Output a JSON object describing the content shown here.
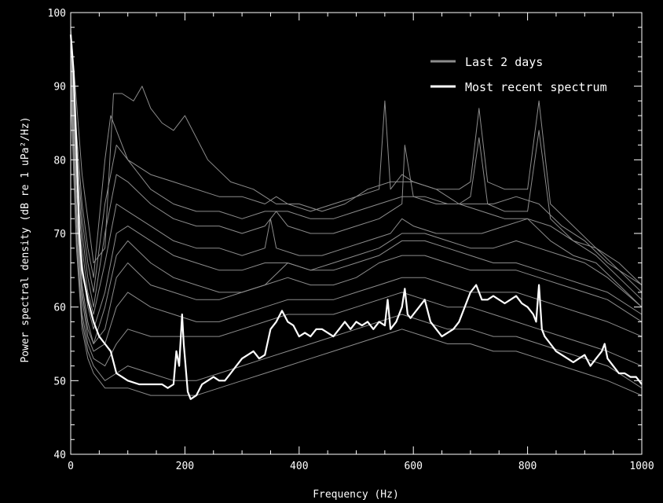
{
  "chart_data": {
    "type": "line",
    "xlabel": "Frequency (Hz)",
    "ylabel": "Power spectral density (dB re 1 uPa²/Hz)",
    "xlim": [
      0,
      1000
    ],
    "ylim": [
      40,
      100
    ],
    "xticks": [
      0,
      200,
      400,
      600,
      800,
      1000
    ],
    "yticks": [
      40,
      50,
      60,
      70,
      80,
      90,
      100
    ],
    "grid": false,
    "legend_position": "top-right",
    "colors": {
      "background": "#000000",
      "axes": "#ffffff",
      "history": "#8c8c8c",
      "recent": "#ffffff"
    },
    "legend": [
      {
        "label": "Last 2 days",
        "color": "#8c8c8c"
      },
      {
        "label": "Most recent spectrum",
        "color": "#ffffff"
      }
    ],
    "series": [
      {
        "name": "Most recent spectrum",
        "color": "#ffffff",
        "x": [
          0,
          5,
          10,
          15,
          20,
          25,
          30,
          40,
          50,
          60,
          70,
          80,
          90,
          100,
          120,
          140,
          160,
          170,
          180,
          185,
          190,
          195,
          198,
          205,
          210,
          220,
          230,
          240,
          250,
          260,
          270,
          280,
          290,
          300,
          310,
          320,
          330,
          340,
          350,
          360,
          370,
          380,
          390,
          400,
          410,
          420,
          430,
          440,
          450,
          460,
          470,
          480,
          490,
          500,
          510,
          520,
          530,
          540,
          550,
          555,
          560,
          570,
          580,
          585,
          590,
          595,
          600,
          610,
          620,
          630,
          640,
          650,
          660,
          670,
          680,
          690,
          700,
          710,
          715,
          720,
          730,
          740,
          750,
          760,
          770,
          780,
          790,
          800,
          810,
          815,
          820,
          825,
          830,
          840,
          850,
          860,
          870,
          880,
          890,
          900,
          910,
          920,
          930,
          935,
          940,
          950,
          960,
          970,
          980,
          990,
          1000
        ],
        "y": [
          97,
          92,
          82,
          70,
          65,
          63,
          61,
          58,
          56,
          55,
          54,
          51,
          50.5,
          50,
          49.5,
          49.5,
          49.5,
          49,
          49.5,
          54,
          52,
          59,
          55,
          48.5,
          47.5,
          48,
          49.5,
          50,
          50.5,
          50,
          50,
          51,
          52,
          53,
          53.5,
          54,
          53,
          53.5,
          57,
          58,
          59.5,
          58,
          57.5,
          56,
          56.5,
          56,
          57,
          57,
          56.5,
          56,
          57,
          58,
          57,
          58,
          57.5,
          58,
          57,
          58,
          57.5,
          61,
          57,
          58,
          60,
          62.5,
          59,
          58.5,
          59,
          60,
          61,
          58,
          57,
          56,
          56.5,
          57,
          58,
          60,
          62,
          63,
          62,
          61,
          61,
          61.5,
          61,
          60.5,
          61,
          61.5,
          60.5,
          60,
          59,
          58,
          63,
          57,
          56,
          55,
          54,
          53.5,
          53,
          52.5,
          53,
          53.5,
          52,
          53,
          54,
          55,
          53,
          52,
          51,
          51,
          50.5,
          50.5,
          49.5
        ]
      },
      {
        "name": "Last 2 days",
        "color": "#8c8c8c",
        "x": [
          0,
          10,
          20,
          30,
          40,
          60,
          75,
          90,
          110,
          125,
          140,
          160,
          180,
          200,
          240,
          280,
          320,
          360,
          400,
          440,
          480,
          520,
          560,
          600,
          640,
          680,
          720,
          760,
          800,
          840,
          880,
          920,
          960,
          1000
        ],
        "y": [
          98,
          88,
          78,
          72,
          66,
          68,
          89,
          89,
          88,
          90,
          87,
          85,
          84,
          86,
          80,
          77,
          76,
          74,
          74,
          73,
          74,
          76,
          77,
          77,
          76,
          74,
          73,
          72,
          72,
          71,
          69,
          68,
          66,
          63
        ]
      },
      {
        "name": "Last 2 days",
        "color": "#8c8c8c",
        "x": [
          0,
          10,
          20,
          30,
          40,
          60,
          70,
          80,
          100,
          140,
          180,
          220,
          260,
          300,
          340,
          360,
          380,
          420,
          460,
          500,
          540,
          550,
          560,
          580,
          600,
          640,
          680,
          700,
          715,
          730,
          760,
          800,
          820,
          840,
          880,
          920,
          960,
          1000
        ],
        "y": [
          97,
          84,
          74,
          68,
          64,
          80,
          86,
          84,
          80,
          78,
          77,
          76,
          75,
          75,
          74,
          75,
          74,
          73,
          74,
          75,
          76,
          88,
          76,
          78,
          77,
          76,
          76,
          77,
          87,
          77,
          76,
          76,
          88,
          74,
          71,
          68,
          65,
          62
        ]
      },
      {
        "name": "Last 2 days",
        "color": "#8c8c8c",
        "x": [
          0,
          10,
          20,
          30,
          40,
          60,
          80,
          100,
          140,
          180,
          220,
          260,
          300,
          340,
          360,
          380,
          420,
          460,
          500,
          540,
          560,
          580,
          585,
          600,
          640,
          680,
          700,
          715,
          730,
          760,
          800,
          820,
          840,
          880,
          920,
          960,
          1000
        ],
        "y": [
          95,
          80,
          70,
          64,
          60,
          70,
          78,
          77,
          74,
          72,
          71,
          71,
          70,
          71,
          73,
          71,
          70,
          70,
          71,
          72,
          73,
          74,
          82,
          75,
          74,
          74,
          75,
          83,
          74,
          73,
          73,
          84,
          72,
          69,
          67,
          64,
          61
        ]
      },
      {
        "name": "Last 2 days",
        "color": "#8c8c8c",
        "x": [
          0,
          10,
          20,
          30,
          40,
          60,
          80,
          100,
          140,
          180,
          220,
          260,
          300,
          340,
          350,
          360,
          400,
          440,
          480,
          520,
          560,
          580,
          600,
          640,
          680,
          720,
          760,
          800,
          840,
          880,
          920,
          960,
          1000
        ],
        "y": [
          94,
          78,
          68,
          62,
          59,
          66,
          74,
          73,
          71,
          69,
          68,
          68,
          67,
          68,
          72,
          68,
          67,
          67,
          68,
          69,
          70,
          72,
          71,
          70,
          70,
          70,
          71,
          72,
          69,
          67,
          66,
          63,
          60
        ]
      },
      {
        "name": "Last 2 days",
        "color": "#8c8c8c",
        "x": [
          0,
          10,
          20,
          30,
          40,
          60,
          80,
          100,
          140,
          180,
          220,
          260,
          300,
          340,
          380,
          420,
          460,
          500,
          540,
          580,
          620,
          660,
          700,
          740,
          780,
          820,
          860,
          900,
          940,
          1000
        ],
        "y": [
          93,
          76,
          66,
          60,
          57,
          62,
          70,
          71,
          69,
          67,
          66,
          65,
          65,
          66,
          66,
          65,
          66,
          67,
          68,
          70,
          70,
          69,
          68,
          68,
          69,
          68,
          67,
          66,
          64,
          60
        ]
      },
      {
        "name": "Last 2 days",
        "color": "#8c8c8c",
        "x": [
          0,
          10,
          20,
          30,
          40,
          60,
          80,
          100,
          140,
          180,
          220,
          260,
          300,
          340,
          380,
          420,
          460,
          500,
          540,
          580,
          620,
          660,
          700,
          740,
          780,
          820,
          860,
          900,
          940,
          1000
        ],
        "y": [
          92,
          74,
          63,
          58,
          55,
          57,
          64,
          66,
          63,
          62,
          61,
          61,
          62,
          63,
          64,
          63,
          63,
          64,
          66,
          67,
          67,
          66,
          65,
          65,
          65,
          64,
          63,
          62,
          61,
          58
        ]
      },
      {
        "name": "Last 2 days",
        "color": "#8c8c8c",
        "x": [
          0,
          10,
          20,
          30,
          40,
          60,
          80,
          100,
          140,
          180,
          220,
          260,
          300,
          340,
          380,
          420,
          460,
          500,
          540,
          580,
          620,
          660,
          700,
          740,
          780,
          820,
          860,
          900,
          940,
          1000
        ],
        "y": [
          91,
          72,
          61,
          56,
          54,
          55,
          60,
          62,
          60,
          59,
          58,
          58,
          59,
          60,
          61,
          61,
          61,
          62,
          63,
          64,
          64,
          63,
          62,
          62,
          62,
          61,
          60,
          59,
          58,
          56
        ]
      },
      {
        "name": "Last 2 days",
        "color": "#8c8c8c",
        "x": [
          0,
          10,
          20,
          30,
          40,
          60,
          80,
          100,
          140,
          180,
          220,
          260,
          300,
          340,
          380,
          420,
          460,
          500,
          540,
          580,
          620,
          660,
          700,
          740,
          780,
          820,
          860,
          900,
          940,
          1000
        ],
        "y": [
          90,
          70,
          59,
          55,
          53,
          52,
          55,
          57,
          56,
          56,
          56,
          56,
          57,
          58,
          59,
          59,
          59,
          60,
          61,
          62,
          61,
          60,
          60,
          59,
          58,
          57,
          56,
          55,
          54,
          52
        ]
      },
      {
        "name": "Last 2 days",
        "color": "#8c8c8c",
        "x": [
          0,
          10,
          20,
          30,
          40,
          60,
          80,
          100,
          140,
          180,
          220,
          260,
          300,
          340,
          380,
          420,
          460,
          500,
          540,
          580,
          620,
          660,
          700,
          740,
          780,
          820,
          860,
          900,
          940,
          1000
        ],
        "y": [
          90,
          69,
          58,
          54,
          52,
          50,
          51,
          52,
          51,
          50,
          50,
          51,
          52,
          53,
          54,
          55,
          56,
          57,
          58,
          59,
          58,
          57,
          57,
          56,
          56,
          55,
          54,
          53,
          52,
          49
        ]
      },
      {
        "name": "Last 2 days",
        "color": "#8c8c8c",
        "x": [
          0,
          10,
          20,
          30,
          40,
          60,
          80,
          100,
          140,
          180,
          220,
          260,
          300,
          340,
          380,
          420,
          460,
          500,
          540,
          580,
          620,
          660,
          700,
          740,
          780,
          820,
          860,
          900,
          940,
          1000
        ],
        "y": [
          89,
          68,
          57,
          53,
          51,
          49,
          49,
          49,
          48,
          48,
          48,
          49,
          50,
          51,
          52,
          53,
          54,
          55,
          56,
          57,
          56,
          55,
          55,
          54,
          54,
          53,
          52,
          51,
          50,
          48
        ]
      },
      {
        "name": "Last 2 days",
        "color": "#8c8c8c",
        "x": [
          0,
          10,
          20,
          30,
          40,
          60,
          80,
          100,
          140,
          180,
          220,
          260,
          300,
          340,
          380,
          420,
          460,
          500,
          540,
          580,
          620,
          660,
          700,
          740,
          780,
          820,
          860,
          900,
          940,
          1000
        ],
        "y": [
          92,
          73,
          62,
          57,
          55,
          60,
          67,
          69,
          66,
          64,
          63,
          62,
          62,
          63,
          66,
          65,
          65,
          66,
          67,
          69,
          69,
          68,
          67,
          66,
          66,
          65,
          64,
          63,
          62,
          59
        ]
      },
      {
        "name": "Last 2 days",
        "color": "#8c8c8c",
        "x": [
          0,
          10,
          20,
          30,
          40,
          60,
          80,
          100,
          140,
          180,
          220,
          260,
          300,
          340,
          380,
          420,
          460,
          500,
          540,
          580,
          620,
          660,
          700,
          740,
          780,
          820,
          860,
          900,
          940,
          1000
        ],
        "y": [
          96,
          82,
          72,
          66,
          62,
          74,
          82,
          80,
          76,
          74,
          73,
          73,
          72,
          73,
          73,
          72,
          72,
          73,
          74,
          75,
          75,
          74,
          74,
          74,
          75,
          74,
          71,
          69,
          66,
          63
        ]
      }
    ]
  }
}
